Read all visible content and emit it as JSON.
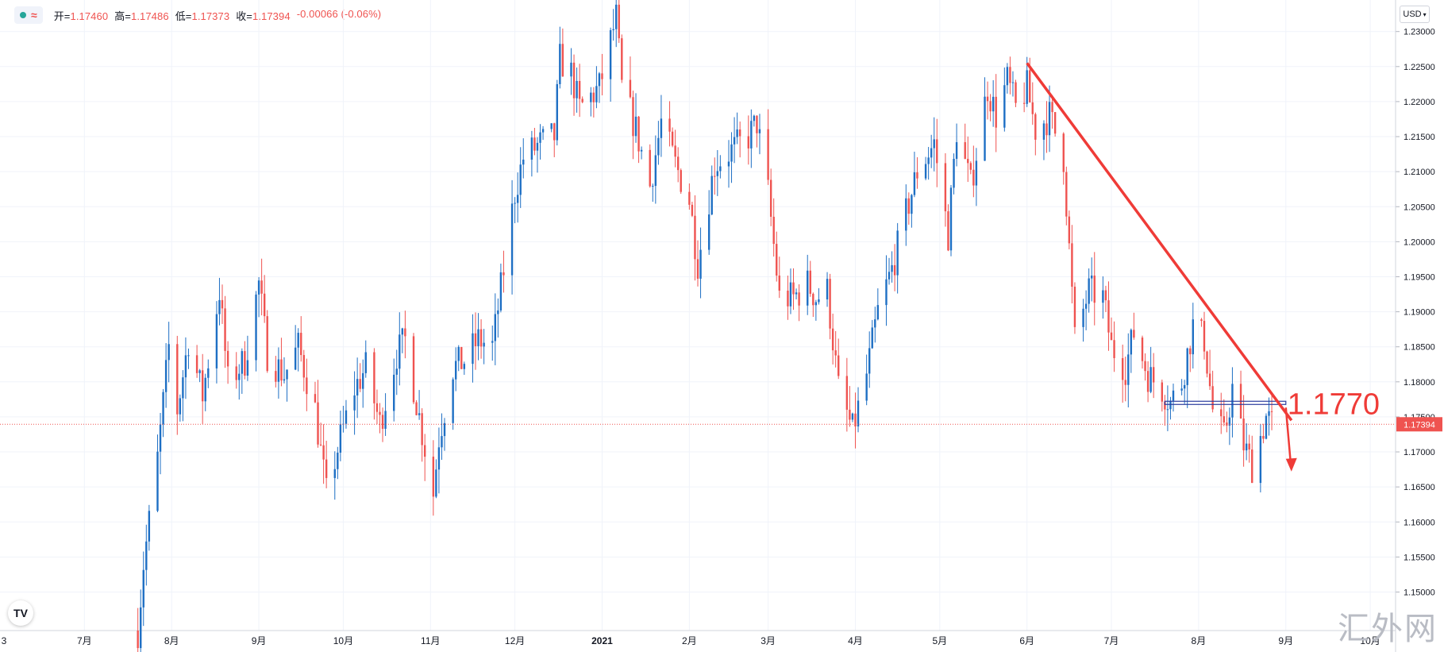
{
  "header": {
    "symbol_icon": "approx-icon",
    "open_label": "开=",
    "open": "1.17460",
    "high_label": "高=",
    "high": "1.17486",
    "low_label": "低=",
    "low": "1.17373",
    "close_label": "收=",
    "close": "1.17394",
    "change": "-0.00066 (-0.06%)"
  },
  "currency_label": "USD",
  "current_price_label": "1.17394",
  "annotation_label": "1.1770",
  "watermark": "汇外网",
  "colors": {
    "up": "#1e6fc4",
    "down": "#ef5350",
    "grid": "#f0f3fa",
    "axis_text": "#131722",
    "trendline": "#ef3b37",
    "level": "#2c3e9e"
  },
  "chart_data": {
    "type": "candlestick",
    "title": "",
    "xlabel": "",
    "ylabel": "",
    "ylim": [
      1.1445,
      1.2345
    ],
    "y_ticks": [
      "1.15000",
      "1.15500",
      "1.16000",
      "1.16500",
      "1.17000",
      "1.17500",
      "1.18000",
      "1.18500",
      "1.19000",
      "1.19500",
      "1.20000",
      "1.20500",
      "1.21000",
      "1.21500",
      "1.22000",
      "1.22500",
      "1.23000"
    ],
    "x_ticks": [
      "3",
      "7月",
      "8月",
      "9月",
      "10月",
      "11月",
      "12月",
      "2021",
      "2月",
      "3月",
      "4月",
      "5月",
      "6月",
      "7月",
      "8月",
      "9月",
      "10月"
    ],
    "x_range": [
      "2020-06-01",
      "2021-10-10"
    ],
    "grid": true,
    "last_price": 1.17394,
    "key_level": 1.177,
    "trendline": {
      "from": {
        "date": "2021-06-01",
        "price": 1.2255
      },
      "to": {
        "date": "2021-09-03",
        "price": 1.1745
      }
    },
    "price_path": [
      [
        "2020-07-20",
        1.1445
      ],
      [
        "2020-07-22",
        1.154
      ],
      [
        "2020-07-27",
        1.169
      ],
      [
        "2020-07-31",
        1.185
      ],
      [
        "2020-08-03",
        1.176
      ],
      [
        "2020-08-07",
        1.186
      ],
      [
        "2020-08-12",
        1.178
      ],
      [
        "2020-08-18",
        1.193
      ],
      [
        "2020-08-21",
        1.18
      ],
      [
        "2020-08-27",
        1.183
      ],
      [
        "2020-09-01",
        1.194
      ],
      [
        "2020-09-04",
        1.184
      ],
      [
        "2020-09-10",
        1.181
      ],
      [
        "2020-09-15",
        1.185
      ],
      [
        "2020-09-21",
        1.176
      ],
      [
        "2020-09-25",
        1.164
      ],
      [
        "2020-09-30",
        1.172
      ],
      [
        "2020-10-05",
        1.179
      ],
      [
        "2020-10-09",
        1.182
      ],
      [
        "2020-10-14",
        1.174
      ],
      [
        "2020-10-20",
        1.184
      ],
      [
        "2020-10-23",
        1.186
      ],
      [
        "2020-10-28",
        1.175
      ],
      [
        "2020-11-02",
        1.164
      ],
      [
        "2020-11-04",
        1.172
      ],
      [
        "2020-11-09",
        1.182
      ],
      [
        "2020-11-13",
        1.183
      ],
      [
        "2020-11-18",
        1.186
      ],
      [
        "2020-11-23",
        1.185
      ],
      [
        "2020-11-27",
        1.196
      ],
      [
        "2020-12-01",
        1.207
      ],
      [
        "2020-12-04",
        1.212
      ],
      [
        "2020-12-10",
        1.214
      ],
      [
        "2020-12-15",
        1.215
      ],
      [
        "2020-12-17",
        1.226
      ],
      [
        "2020-12-21",
        1.224
      ],
      [
        "2020-12-24",
        1.219
      ],
      [
        "2020-12-31",
        1.222
      ],
      [
        "2021-01-06",
        1.232
      ],
      [
        "2021-01-08",
        1.222
      ],
      [
        "2021-01-13",
        1.216
      ],
      [
        "2021-01-18",
        1.208
      ],
      [
        "2021-01-22",
        1.217
      ],
      [
        "2021-01-27",
        1.211
      ],
      [
        "2021-02-01",
        1.206
      ],
      [
        "2021-02-04",
        1.197
      ],
      [
        "2021-02-10",
        1.211
      ],
      [
        "2021-02-16",
        1.213
      ],
      [
        "2021-02-22",
        1.215
      ],
      [
        "2021-02-25",
        1.217
      ],
      [
        "2021-03-01",
        1.207
      ],
      [
        "2021-03-05",
        1.192
      ],
      [
        "2021-03-10",
        1.192
      ],
      [
        "2021-03-15",
        1.194
      ],
      [
        "2021-03-18",
        1.192
      ],
      [
        "2021-03-22",
        1.193
      ],
      [
        "2021-03-26",
        1.179
      ],
      [
        "2021-03-31",
        1.173
      ],
      [
        "2021-04-05",
        1.181
      ],
      [
        "2021-04-09",
        1.19
      ],
      [
        "2021-04-14",
        1.196
      ],
      [
        "2021-04-19",
        1.204
      ],
      [
        "2021-04-23",
        1.21
      ],
      [
        "2021-04-29",
        1.214
      ],
      [
        "2021-05-04",
        1.201
      ],
      [
        "2021-05-07",
        1.216
      ],
      [
        "2021-05-12",
        1.208
      ],
      [
        "2021-05-18",
        1.222
      ],
      [
        "2021-05-21",
        1.218
      ],
      [
        "2021-05-25",
        1.223
      ],
      [
        "2021-05-28",
        1.219
      ],
      [
        "2021-06-01",
        1.222
      ],
      [
        "2021-06-04",
        1.216
      ],
      [
        "2021-06-09",
        1.218
      ],
      [
        "2021-06-14",
        1.212
      ],
      [
        "2021-06-16",
        1.199
      ],
      [
        "2021-06-18",
        1.186
      ],
      [
        "2021-06-23",
        1.193
      ],
      [
        "2021-06-28",
        1.192
      ],
      [
        "2021-07-01",
        1.185
      ],
      [
        "2021-07-06",
        1.182
      ],
      [
        "2021-07-09",
        1.187
      ],
      [
        "2021-07-14",
        1.181
      ],
      [
        "2021-07-19",
        1.179
      ],
      [
        "2021-07-22",
        1.177
      ],
      [
        "2021-07-26",
        1.18
      ],
      [
        "2021-07-30",
        1.188
      ],
      [
        "2021-08-03",
        1.186
      ],
      [
        "2021-08-06",
        1.176
      ],
      [
        "2021-08-10",
        1.172
      ],
      [
        "2021-08-13",
        1.179
      ],
      [
        "2021-08-17",
        1.171
      ],
      [
        "2021-08-20",
        1.168
      ],
      [
        "2021-08-25",
        1.175
      ],
      [
        "2021-08-27",
        1.1739
      ]
    ]
  }
}
